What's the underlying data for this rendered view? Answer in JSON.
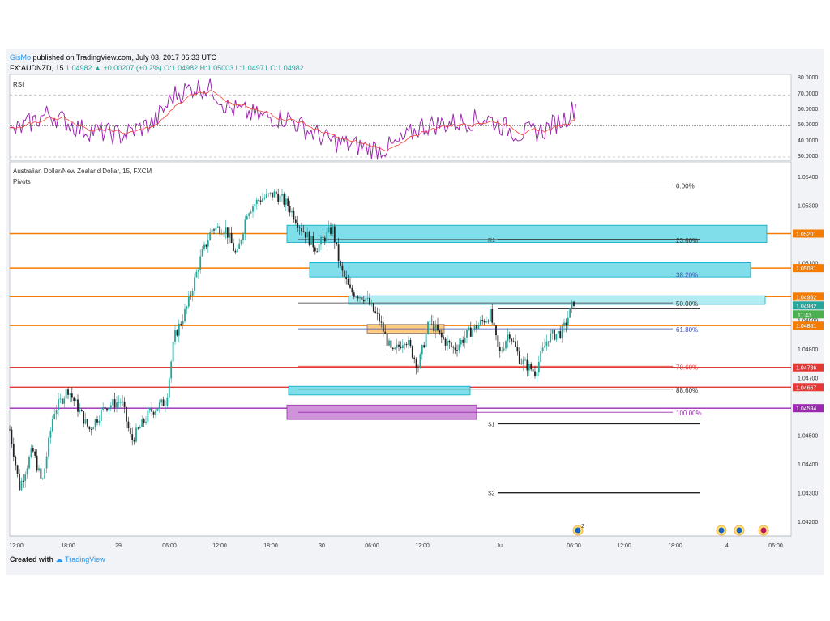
{
  "header": {
    "user": "GisMo",
    "published": "published on TradingView.com, July 03, 2017 06:33 UTC",
    "symbol": "FX:AUDNZD, 15",
    "last": "1.04982",
    "change": "+0.00207 (+0.2%)",
    "ohlc": "O:1.04982 H:1.05003 L:1.04971 C:1.04982"
  },
  "rsi_panel": {
    "label": "RSI",
    "ticks": [
      "80.0000",
      "70.0000",
      "60.0000",
      "50.0000",
      "40.0000",
      "30.0000"
    ]
  },
  "main_panel": {
    "title": "Australian Dollar/New Zealand Dollar, 15, FXCM",
    "subtitle": "Pivots"
  },
  "footer": {
    "created_with": "Created with",
    "brand": "TradingView"
  },
  "colors": {
    "up": "#26a69a",
    "down": "#222222",
    "rsi": "#9c27b0",
    "rsi_ma": "#f44336",
    "orange": "#f57c00",
    "red": "#e53935",
    "purple": "#9c27b0",
    "cyan": "#80deea"
  },
  "chart_data": {
    "type": "candlestick",
    "title": "Australian Dollar/New Zealand Dollar, 15, FXCM",
    "ylim": [
      1.0415,
      1.0545
    ],
    "y_ticks": [
      "1.05400",
      "1.05300",
      "1.05100",
      "1.04900",
      "1.04800",
      "1.04700",
      "1.04500",
      "1.04400",
      "1.04300",
      "1.04200"
    ],
    "x_ticks": [
      "12:00",
      "18:00",
      "29",
      "06:00",
      "12:00",
      "18:00",
      "30",
      "06:00",
      "12:00",
      "Jul",
      "06:00",
      "12:00",
      "18:00",
      "4",
      "06:00"
    ],
    "price_lines": [
      {
        "label": "1.05201",
        "price": 1.05201,
        "color": "#f57c00"
      },
      {
        "label": "1.05081",
        "price": 1.05081,
        "color": "#f57c00"
      },
      {
        "label": "1.04982",
        "price": 1.04982,
        "color": "#f57c00"
      },
      {
        "label": "1.04881",
        "price": 1.04881,
        "color": "#f57c00"
      },
      {
        "label": "1.04736",
        "price": 1.04736,
        "color": "#e53935"
      },
      {
        "label": "1.04667",
        "price": 1.04667,
        "color": "#e53935"
      },
      {
        "label": "1.04594",
        "price": 1.04594,
        "color": "#9c27b0"
      }
    ],
    "last_price_label": "1.04982",
    "countdown": "11:43",
    "fibonacci": [
      {
        "label": "0.00%",
        "price": 1.0537
      },
      {
        "label": "23.60%",
        "price": 1.0518
      },
      {
        "label": "38.20%",
        "price": 1.0506
      },
      {
        "label": "50.00%",
        "price": 1.0496
      },
      {
        "label": "61.80%",
        "price": 1.0487
      },
      {
        "label": "78.60%",
        "price": 1.0474
      },
      {
        "label": "88.60%",
        "price": 1.0466
      },
      {
        "label": "100.00%",
        "price": 1.0458
      }
    ],
    "pivots": [
      {
        "label": "R1",
        "price": 1.0518
      },
      {
        "label": "S1",
        "price": 1.0454
      },
      {
        "label": "S2",
        "price": 1.043
      }
    ],
    "event_badge": "2",
    "rsi_levels": [
      70,
      50,
      30
    ]
  }
}
